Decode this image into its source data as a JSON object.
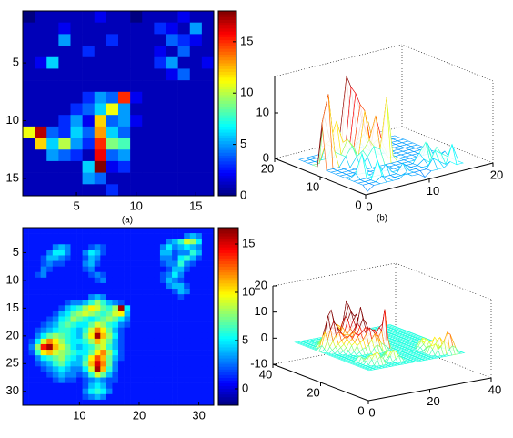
{
  "chart_data": [
    {
      "type": "heatmap",
      "caption": "(a)",
      "colormap": "jet",
      "y_direction": "reverse",
      "xlim": [
        0.5,
        16.5
      ],
      "ylim": [
        0.5,
        16.5
      ],
      "xticks": [
        5,
        10,
        15
      ],
      "yticks": [
        5,
        10,
        15
      ],
      "clim": [
        0,
        18
      ],
      "cticks": [
        0,
        5,
        10,
        15
      ],
      "z": [
        [
          0,
          1,
          1,
          1,
          1,
          1,
          2,
          1,
          1,
          0,
          1,
          1,
          1,
          2,
          1,
          1
        ],
        [
          1,
          1,
          1,
          2,
          1,
          1,
          1,
          1,
          1,
          1,
          1,
          3,
          2,
          1,
          5,
          1
        ],
        [
          1,
          1,
          1,
          5,
          1,
          1,
          1,
          3,
          1,
          1,
          1,
          1,
          4,
          3,
          2,
          1
        ],
        [
          1,
          1,
          1,
          1,
          1,
          3,
          1,
          1,
          1,
          1,
          1,
          2,
          1,
          4,
          1,
          1
        ],
        [
          1,
          2,
          6,
          1,
          1,
          1,
          1,
          1,
          1,
          1,
          1,
          3,
          5,
          1,
          1,
          2
        ],
        [
          1,
          1,
          1,
          1,
          1,
          1,
          1,
          1,
          1,
          1,
          1,
          1,
          2,
          4,
          1,
          1
        ],
        [
          1,
          1,
          1,
          1,
          1,
          1,
          1,
          1,
          1,
          1,
          1,
          1,
          1,
          1,
          1,
          1
        ],
        [
          1,
          1,
          1,
          1,
          1,
          3,
          5,
          4,
          15,
          2,
          1,
          1,
          1,
          1,
          1,
          1
        ],
        [
          1,
          1,
          1,
          1,
          3,
          4,
          6,
          11,
          5,
          1,
          1,
          1,
          1,
          1,
          1,
          1
        ],
        [
          1,
          1,
          1,
          3,
          5,
          2,
          12,
          4,
          5,
          2,
          1,
          1,
          1,
          1,
          1,
          1
        ],
        [
          11,
          17,
          4,
          3,
          6,
          4,
          13,
          6,
          4,
          1,
          1,
          1,
          1,
          1,
          1,
          1
        ],
        [
          1,
          12,
          6,
          10,
          5,
          3,
          15,
          9,
          8,
          1,
          1,
          1,
          1,
          1,
          1,
          1
        ],
        [
          1,
          1,
          5,
          4,
          3,
          1,
          16,
          4,
          5,
          1,
          1,
          1,
          1,
          1,
          1,
          1
        ],
        [
          1,
          1,
          1,
          1,
          1,
          6,
          18,
          2,
          3,
          1,
          1,
          1,
          1,
          1,
          1,
          1
        ],
        [
          1,
          1,
          1,
          1,
          1,
          5,
          4,
          1,
          1,
          1,
          1,
          1,
          1,
          1,
          1,
          1
        ],
        [
          1,
          1,
          1,
          1,
          1,
          1,
          1,
          3,
          1,
          1,
          1,
          1,
          1,
          1,
          1,
          1
        ]
      ]
    },
    {
      "type": "mesh3d",
      "caption": "(b)",
      "colormap": "jet",
      "xlim": [
        0,
        20
      ],
      "ylim": [
        0,
        20
      ],
      "zlim": [
        0,
        18
      ],
      "xticks": [
        0,
        10,
        20
      ],
      "yticks": [
        0,
        10,
        20
      ],
      "zticks": [
        0,
        10
      ]
    },
    {
      "type": "heatmap",
      "colormap": "jet",
      "y_direction": "reverse",
      "xlim": [
        0.5,
        32.5
      ],
      "ylim": [
        0.5,
        32.5
      ],
      "xticks": [
        10,
        20,
        30
      ],
      "yticks": [
        5,
        10,
        15,
        20,
        25,
        30
      ],
      "clim": [
        -1.7,
        16.7
      ],
      "cticks": [
        0,
        5,
        10,
        15
      ],
      "z": [
        [
          1,
          1,
          1,
          1,
          1,
          1,
          1,
          1,
          1,
          1,
          1,
          1,
          1,
          1,
          1,
          1,
          1,
          1,
          1,
          1,
          1,
          1,
          1,
          1,
          1,
          1,
          1,
          1,
          1,
          1,
          1,
          1
        ],
        [
          1,
          1,
          1,
          1,
          1,
          1,
          1,
          1,
          1,
          1,
          1,
          1,
          1,
          1,
          1,
          1,
          1,
          1,
          1,
          1,
          1,
          1,
          1,
          1,
          1,
          1,
          1,
          3,
          4,
          3,
          1,
          1
        ],
        [
          1,
          1,
          1,
          1,
          1,
          1,
          1,
          1,
          1,
          1,
          1,
          1,
          1,
          1,
          1,
          1,
          1,
          1,
          1,
          1,
          1,
          1,
          1,
          1,
          3,
          4,
          6,
          9,
          8,
          5,
          1,
          1
        ],
        [
          1,
          1,
          1,
          1,
          1,
          3,
          4,
          3,
          1,
          1,
          1,
          2,
          3,
          2,
          1,
          1,
          1,
          1,
          1,
          1,
          1,
          1,
          1,
          3,
          5,
          3,
          4,
          5,
          4,
          3,
          1,
          1
        ],
        [
          1,
          1,
          1,
          1,
          3,
          5,
          5,
          3,
          1,
          1,
          3,
          5,
          4,
          2,
          1,
          1,
          1,
          1,
          1,
          1,
          1,
          1,
          1,
          4,
          4,
          2,
          3,
          3,
          6,
          4,
          1,
          1
        ],
        [
          1,
          1,
          1,
          2,
          4,
          4,
          3,
          2,
          1,
          1,
          2,
          4,
          3,
          1,
          1,
          1,
          1,
          1,
          1,
          1,
          1,
          1,
          1,
          3,
          3,
          2,
          5,
          6,
          4,
          2,
          1,
          1
        ],
        [
          1,
          1,
          1,
          2,
          3,
          2,
          2,
          1,
          1,
          1,
          3,
          4,
          2,
          1,
          1,
          1,
          1,
          1,
          1,
          1,
          1,
          1,
          1,
          2,
          3,
          3,
          6,
          3,
          2,
          1,
          1,
          1
        ],
        [
          1,
          1,
          1,
          3,
          2,
          1,
          1,
          1,
          1,
          1,
          2,
          3,
          1,
          1,
          1,
          1,
          1,
          1,
          1,
          1,
          1,
          1,
          1,
          1,
          2,
          4,
          4,
          2,
          1,
          1,
          1,
          1
        ],
        [
          1,
          1,
          2,
          3,
          1,
          1,
          1,
          1,
          1,
          1,
          1,
          2,
          3,
          2,
          1,
          1,
          1,
          1,
          1,
          1,
          1,
          1,
          1,
          2,
          3,
          5,
          3,
          1,
          1,
          1,
          1,
          1
        ],
        [
          1,
          1,
          1,
          1,
          1,
          1,
          1,
          1,
          1,
          1,
          1,
          1,
          2,
          3,
          1,
          1,
          1,
          1,
          1,
          1,
          1,
          1,
          1,
          2,
          4,
          3,
          2,
          1,
          1,
          1,
          1,
          1
        ],
        [
          1,
          1,
          1,
          1,
          1,
          1,
          1,
          1,
          1,
          1,
          1,
          1,
          1,
          1,
          1,
          1,
          1,
          1,
          1,
          1,
          1,
          1,
          1,
          1,
          3,
          4,
          4,
          2,
          1,
          1,
          1,
          1
        ],
        [
          1,
          1,
          1,
          1,
          1,
          1,
          1,
          1,
          1,
          1,
          1,
          1,
          1,
          1,
          1,
          1,
          1,
          1,
          1,
          1,
          1,
          1,
          1,
          1,
          1,
          2,
          4,
          3,
          1,
          1,
          1,
          1
        ],
        [
          1,
          1,
          1,
          1,
          1,
          1,
          1,
          1,
          1,
          1,
          1,
          3,
          4,
          3,
          1,
          1,
          1,
          1,
          1,
          1,
          1,
          1,
          1,
          1,
          1,
          1,
          2,
          1,
          1,
          1,
          1,
          1
        ],
        [
          1,
          1,
          1,
          1,
          1,
          1,
          1,
          2,
          3,
          3,
          4,
          6,
          8,
          6,
          4,
          3,
          2,
          1,
          1,
          1,
          1,
          1,
          1,
          1,
          1,
          1,
          1,
          1,
          1,
          1,
          1,
          1
        ],
        [
          1,
          1,
          1,
          1,
          1,
          1,
          2,
          4,
          5,
          6,
          8,
          10,
          9,
          7,
          6,
          8,
          16,
          5,
          1,
          1,
          1,
          1,
          1,
          1,
          1,
          1,
          1,
          1,
          1,
          1,
          1,
          1
        ],
        [
          1,
          1,
          1,
          1,
          1,
          2,
          4,
          5,
          7,
          8,
          9,
          8,
          7,
          6,
          7,
          9,
          10,
          4,
          1,
          1,
          1,
          1,
          1,
          1,
          1,
          1,
          1,
          1,
          1,
          1,
          1,
          1
        ],
        [
          1,
          1,
          1,
          1,
          2,
          3,
          5,
          6,
          8,
          7,
          6,
          5,
          6,
          7,
          8,
          7,
          5,
          3,
          1,
          1,
          1,
          1,
          1,
          1,
          1,
          1,
          1,
          1,
          1,
          1,
          1,
          1
        ],
        [
          1,
          1,
          1,
          2,
          3,
          4,
          6,
          7,
          6,
          5,
          5,
          7,
          9,
          8,
          6,
          5,
          3,
          2,
          1,
          1,
          1,
          1,
          1,
          1,
          1,
          1,
          1,
          1,
          1,
          1,
          1,
          1
        ],
        [
          1,
          1,
          2,
          3,
          4,
          5,
          6,
          6,
          5,
          4,
          6,
          9,
          12,
          10,
          7,
          4,
          2,
          1,
          1,
          1,
          1,
          1,
          1,
          1,
          1,
          1,
          1,
          1,
          1,
          1,
          1,
          1
        ],
        [
          1,
          1,
          3,
          5,
          7,
          8,
          7,
          6,
          5,
          4,
          7,
          10,
          16,
          11,
          8,
          5,
          2,
          1,
          1,
          1,
          1,
          1,
          1,
          1,
          1,
          1,
          1,
          1,
          1,
          1,
          1,
          1
        ],
        [
          1,
          2,
          5,
          9,
          12,
          10,
          8,
          6,
          5,
          5,
          6,
          8,
          11,
          9,
          7,
          4,
          2,
          1,
          1,
          1,
          1,
          1,
          1,
          1,
          1,
          1,
          1,
          1,
          1,
          1,
          1,
          1
        ],
        [
          1,
          3,
          8,
          14,
          16,
          11,
          9,
          7,
          5,
          4,
          5,
          6,
          8,
          9,
          6,
          4,
          2,
          1,
          1,
          1,
          1,
          1,
          1,
          1,
          1,
          1,
          1,
          1,
          1,
          1,
          1,
          1
        ],
        [
          1,
          2,
          6,
          10,
          11,
          9,
          8,
          7,
          6,
          5,
          5,
          7,
          10,
          12,
          8,
          5,
          2,
          1,
          1,
          1,
          1,
          1,
          1,
          1,
          1,
          1,
          1,
          1,
          1,
          1,
          1,
          1
        ],
        [
          1,
          1,
          3,
          5,
          6,
          7,
          8,
          6,
          5,
          4,
          6,
          10,
          13,
          11,
          7,
          4,
          2,
          1,
          1,
          1,
          1,
          1,
          1,
          1,
          1,
          1,
          1,
          1,
          1,
          1,
          1,
          1
        ],
        [
          1,
          1,
          2,
          3,
          4,
          6,
          7,
          5,
          4,
          4,
          7,
          11,
          15,
          12,
          7,
          3,
          1,
          1,
          1,
          1,
          1,
          1,
          1,
          1,
          1,
          1,
          1,
          1,
          1,
          1,
          1,
          1
        ],
        [
          1,
          1,
          1,
          2,
          3,
          4,
          5,
          4,
          3,
          3,
          5,
          9,
          16,
          11,
          6,
          3,
          1,
          1,
          1,
          1,
          1,
          1,
          1,
          1,
          1,
          1,
          1,
          1,
          1,
          1,
          1,
          1
        ],
        [
          1,
          1,
          1,
          1,
          2,
          3,
          4,
          3,
          3,
          2,
          3,
          6,
          9,
          7,
          4,
          2,
          1,
          1,
          1,
          1,
          1,
          1,
          1,
          1,
          1,
          1,
          1,
          1,
          1,
          1,
          1,
          1
        ],
        [
          1,
          1,
          1,
          1,
          1,
          2,
          3,
          2,
          2,
          1,
          2,
          3,
          4,
          3,
          2,
          2,
          1,
          1,
          1,
          1,
          1,
          1,
          1,
          1,
          1,
          1,
          1,
          1,
          1,
          1,
          1,
          1
        ],
        [
          1,
          1,
          1,
          1,
          1,
          1,
          1,
          1,
          1,
          1,
          2,
          4,
          5,
          4,
          2,
          1,
          1,
          1,
          1,
          1,
          1,
          1,
          1,
          1,
          1,
          1,
          1,
          1,
          1,
          1,
          1,
          1
        ],
        [
          1,
          1,
          1,
          1,
          1,
          1,
          1,
          1,
          1,
          1,
          3,
          5,
          6,
          5,
          3,
          1,
          1,
          1,
          1,
          1,
          1,
          1,
          1,
          1,
          1,
          1,
          1,
          1,
          1,
          1,
          1,
          1
        ],
        [
          1,
          1,
          1,
          1,
          1,
          1,
          1,
          1,
          1,
          1,
          2,
          3,
          4,
          3,
          1,
          1,
          1,
          1,
          1,
          1,
          1,
          1,
          1,
          1,
          1,
          1,
          1,
          1,
          1,
          1,
          1,
          1
        ],
        [
          1,
          1,
          1,
          1,
          1,
          1,
          1,
          1,
          1,
          1,
          1,
          1,
          1,
          1,
          1,
          1,
          1,
          1,
          1,
          1,
          1,
          1,
          1,
          1,
          1,
          1,
          1,
          1,
          1,
          1,
          1,
          1
        ]
      ]
    },
    {
      "type": "mesh3d",
      "colormap": "jet",
      "xlim": [
        0,
        40
      ],
      "ylim": [
        0,
        40
      ],
      "zlim": [
        -10,
        20
      ],
      "xticks": [
        0,
        20,
        40
      ],
      "yticks": [
        0,
        20,
        40
      ],
      "zticks": [
        -10,
        0,
        10,
        20
      ]
    }
  ]
}
